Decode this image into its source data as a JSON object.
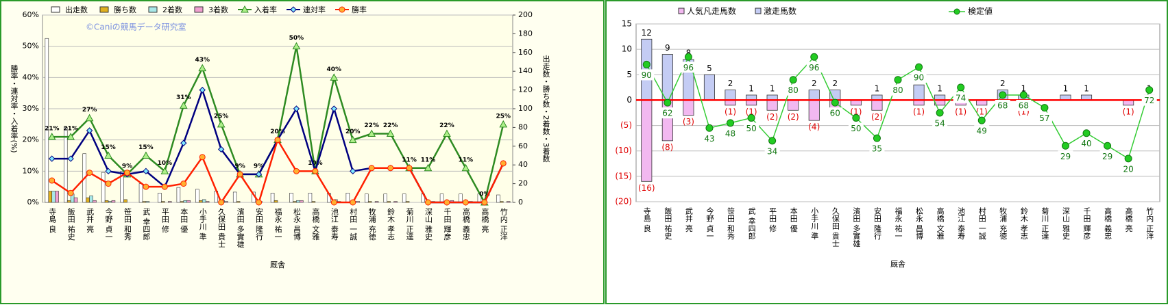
{
  "chart_data": [
    {
      "type": "combo",
      "watermark": "©Caniの競馬データ研究室",
      "xlabel": "厩舎",
      "ylabel": "勝率・連対率・入着率(%)",
      "y2label": "出走数・勝ち数・2着数・3着数",
      "categories": [
        "寺島 良",
        "飯田 祐史",
        "武井 亮",
        "今野 貞一",
        "笹田 和秀",
        "武 幸四郎",
        "平田 修",
        "本田 優",
        "小手川 準",
        "久保田 貴士",
        "濱田 多實雄",
        "安田 隆行",
        "福永 祐一",
        "松永 昌博",
        "高橋 文雅",
        "池江 泰寿",
        "村田 一誠",
        "牧浦 充徳",
        "鈴木 孝志",
        "菊川 正達",
        "深山 雅史",
        "千田 輝彦",
        "高橋 義忠",
        "高橋 亮",
        "竹内 正洋"
      ],
      "ylim": [
        0,
        60
      ],
      "yticks": [
        {
          "value": 0,
          "label": "0%"
        },
        {
          "value": 10,
          "label": "10%"
        },
        {
          "value": 20,
          "label": "20%"
        },
        {
          "value": 30,
          "label": "30%"
        },
        {
          "value": 40,
          "label": "40%"
        },
        {
          "value": 50,
          "label": "50%"
        },
        {
          "value": 60,
          "label": "60%"
        }
      ],
      "y2lim": [
        0,
        200
      ],
      "y2ticks": [
        0,
        20,
        40,
        60,
        80,
        100,
        120,
        140,
        160,
        180,
        200
      ],
      "grid": true,
      "series": [
        {
          "name": "出走数",
          "kind": "bar",
          "axis": "y2",
          "color": "#ffffff",
          "values": [
            175,
            80,
            52,
            32,
            33,
            20,
            10,
            16,
            14,
            12,
            11,
            11,
            10,
            10,
            10,
            10,
            10,
            9,
            9,
            9,
            9,
            9,
            9,
            9,
            8
          ]
        },
        {
          "name": "勝ち数",
          "kind": "bar",
          "axis": "y2",
          "color": "#e0b020",
          "values": [
            12,
            2,
            5,
            2,
            3,
            1,
            1,
            1,
            2,
            0,
            1,
            0,
            2,
            1,
            1,
            0,
            0,
            1,
            1,
            1,
            0,
            0,
            0,
            0,
            1
          ]
        },
        {
          "name": "2着数",
          "kind": "bar",
          "axis": "y2",
          "color": "#a8e8e8",
          "values": [
            12,
            9,
            7,
            1,
            0,
            1,
            0,
            2,
            3,
            2,
            0,
            1,
            0,
            2,
            0,
            3,
            1,
            0,
            0,
            0,
            0,
            0,
            0,
            0,
            0
          ]
        },
        {
          "name": "3着数",
          "kind": "bar",
          "axis": "y2",
          "color": "#f0a0d0",
          "values": [
            12,
            5,
            2,
            2,
            0,
            0,
            1,
            2,
            1,
            1,
            0,
            0,
            0,
            2,
            0,
            1,
            1,
            1,
            1,
            0,
            1,
            2,
            1,
            0,
            1
          ]
        },
        {
          "name": "入着率",
          "kind": "line",
          "marker": "triangle",
          "color": "#2e8b22",
          "marker_fill": "#aef08a",
          "values": [
            21,
            21,
            27,
            15,
            9,
            15,
            10,
            31,
            43,
            25,
            9,
            9,
            20,
            50,
            10,
            40,
            20,
            22,
            22,
            11,
            11,
            22,
            11,
            0,
            25
          ],
          "value_labels": [
            "21%",
            "21%",
            "27%",
            "15%",
            "9%",
            "15%",
            "10%",
            "31%",
            "43%",
            "25%",
            "9%",
            "9%",
            "20%",
            "50%",
            "10%",
            "40%",
            "20%",
            "22%",
            "22%",
            "11%",
            "11%",
            "22%",
            "11%",
            "0%",
            "25%"
          ]
        },
        {
          "name": "連対率",
          "kind": "line",
          "marker": "diamond",
          "color": "#000080",
          "marker_fill": "#7fe8ff",
          "values": [
            14,
            14,
            23,
            10,
            9,
            10,
            5,
            19,
            36,
            17,
            9,
            9,
            20,
            30,
            10,
            30,
            10,
            11,
            11,
            11,
            0,
            0,
            0,
            0,
            12.5
          ]
        },
        {
          "name": "勝率",
          "kind": "line",
          "marker": "circle",
          "color": "#ff2000",
          "marker_fill": "#ffb030",
          "values": [
            7,
            3,
            9.5,
            6,
            9.5,
            5,
            5,
            6,
            14.5,
            0,
            9,
            0,
            20,
            10,
            10,
            0,
            0,
            11,
            11,
            11,
            0,
            0,
            0,
            0,
            12.5
          ]
        }
      ]
    },
    {
      "type": "diverging",
      "xlabel": "厩舎",
      "categories": [
        "寺島 良",
        "飯田 祐史",
        "武井 亮",
        "今野 貞一",
        "笹田 和秀",
        "武 幸四郎",
        "平田 修",
        "本田 優",
        "小手川 準",
        "久保田 貴士",
        "濱田 多實雄",
        "安田 隆行",
        "福永 祐一",
        "松永 昌博",
        "高橋 文雅",
        "池江 泰寿",
        "村田 一誠",
        "牧浦 充徳",
        "鈴木 孝志",
        "菊川 正達",
        "深山 雅史",
        "千田 輝彦",
        "高橋 義忠",
        "高橋 亮",
        "竹内 正洋"
      ],
      "ylim": [
        -20,
        15
      ],
      "yticks": [
        {
          "value": -20,
          "label": "(20)"
        },
        {
          "value": -15,
          "label": "(15)"
        },
        {
          "value": -10,
          "label": "(10)"
        },
        {
          "value": -5,
          "label": "(5)"
        },
        0,
        5,
        10,
        15
      ],
      "grid": true,
      "zero_line_color": "#ff0000",
      "series": [
        {
          "name": "人気凡走馬数",
          "kind": "bar",
          "color": "#f2b8f0",
          "values": [
            -16,
            -8,
            -3,
            0,
            -1,
            -1,
            -2,
            -2,
            -4,
            -2,
            -1,
            -2,
            0,
            -1,
            -1,
            -1,
            -1,
            0,
            -1,
            0,
            0,
            0,
            0,
            -1,
            0
          ],
          "value_labels": [
            "(16)",
            "(8)",
            "(3)",
            null,
            "(1)",
            "(1)",
            "(2)",
            "(2)",
            "(4)",
            null,
            "(1)",
            "(2)",
            null,
            "(1)",
            null,
            "(1)",
            "(1)",
            null,
            "(1)",
            null,
            null,
            null,
            null,
            "(1)",
            null
          ]
        },
        {
          "name": "激走馬数",
          "kind": "bar",
          "color": "#c4ccf4",
          "values": [
            12,
            9,
            8,
            5,
            2,
            1,
            1,
            0,
            2,
            2,
            0,
            1,
            0,
            3,
            1,
            0,
            0,
            2,
            1,
            0,
            1,
            1,
            0,
            0,
            1
          ]
        },
        {
          "name": "検定値",
          "kind": "line",
          "color": "#33cc33",
          "marker_fill": "#22cc22",
          "values": [
            7,
            -0.5,
            8.5,
            -5.5,
            -4.5,
            -3.5,
            -8,
            4,
            8.5,
            -0.5,
            -3.5,
            -7.5,
            4,
            6.5,
            -2.5,
            2.5,
            -4,
            1,
            1,
            -1.5,
            -9,
            -6.5,
            -9,
            -11.5,
            2
          ],
          "point_labels": [
            90,
            62,
            96,
            43,
            48,
            50,
            34,
            80,
            96,
            60,
            50,
            35,
            80,
            90,
            54,
            74,
            49,
            68,
            68,
            57,
            29,
            40,
            29,
            20,
            72
          ]
        }
      ]
    }
  ]
}
